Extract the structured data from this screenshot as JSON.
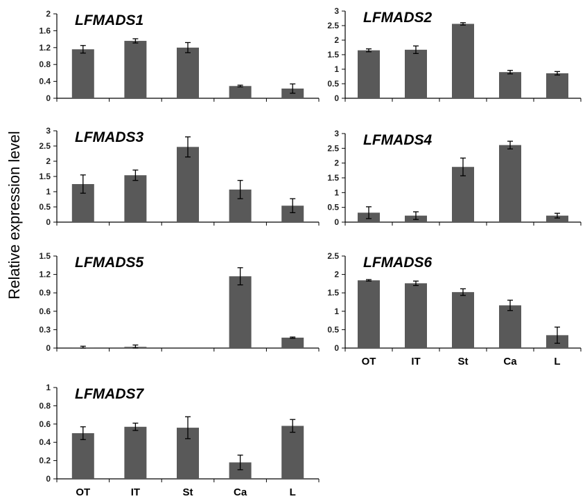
{
  "figure": {
    "ylabel": "Relative expression level"
  },
  "style": {
    "bar_color": "#595959",
    "axis_color": "#000000"
  },
  "chart_data": [
    {
      "type": "bar",
      "title": "LFMADS1",
      "categories": [
        "OT",
        "IT",
        "St",
        "Ca",
        "L"
      ],
      "values": [
        1.16,
        1.36,
        1.2,
        0.29,
        0.23
      ],
      "errors": [
        0.09,
        0.05,
        0.12,
        0.02,
        0.11
      ],
      "ylim": [
        0,
        2
      ],
      "yticks": [
        "0",
        "0.4",
        "0.8",
        "1.2",
        "1.6",
        "2"
      ],
      "show_xticks": false
    },
    {
      "type": "bar",
      "title": "LFMADS2",
      "categories": [
        "OT",
        "IT",
        "St",
        "Ca",
        "L"
      ],
      "values": [
        1.65,
        1.67,
        2.56,
        0.9,
        0.86
      ],
      "errors": [
        0.05,
        0.13,
        0.04,
        0.06,
        0.06
      ],
      "ylim": [
        0,
        3
      ],
      "yticks": [
        "0",
        "0.5",
        "1",
        "1.5",
        "2",
        "2.5",
        "3"
      ],
      "show_xticks": false
    },
    {
      "type": "bar",
      "title": "LFMADS3",
      "categories": [
        "OT",
        "IT",
        "St",
        "Ca",
        "L"
      ],
      "values": [
        1.25,
        1.54,
        2.47,
        1.07,
        0.54
      ],
      "errors": [
        0.3,
        0.17,
        0.33,
        0.3,
        0.23
      ],
      "ylim": [
        0,
        3
      ],
      "yticks": [
        "0",
        "0.5",
        "1",
        "1.5",
        "2",
        "2.5",
        "3"
      ],
      "show_xticks": false
    },
    {
      "type": "bar",
      "title": "LFMADS4",
      "categories": [
        "OT",
        "IT",
        "St",
        "Ca",
        "L"
      ],
      "values": [
        0.32,
        0.22,
        1.87,
        2.61,
        0.22
      ],
      "errors": [
        0.2,
        0.13,
        0.3,
        0.13,
        0.08
      ],
      "ylim": [
        0,
        3
      ],
      "yticks": [
        "0",
        "0.5",
        "1",
        "1.5",
        "2",
        "2.5",
        "3"
      ],
      "show_xticks": false
    },
    {
      "type": "bar",
      "title": "LFMADS5",
      "categories": [
        "OT",
        "IT",
        "St",
        "Ca",
        "L"
      ],
      "values": [
        0.01,
        0.02,
        0,
        1.17,
        0.17
      ],
      "errors": [
        0.02,
        0.03,
        0,
        0.14,
        0.01
      ],
      "ylim": [
        0,
        1.5
      ],
      "yticks": [
        "0",
        "0.3",
        "0.6",
        "0.9",
        "1.2",
        "1.5"
      ],
      "show_xticks": false
    },
    {
      "type": "bar",
      "title": "LFMADS6",
      "categories": [
        "OT",
        "IT",
        "St",
        "Ca",
        "L"
      ],
      "values": [
        1.84,
        1.76,
        1.52,
        1.16,
        0.35
      ],
      "errors": [
        0.02,
        0.06,
        0.09,
        0.14,
        0.22
      ],
      "ylim": [
        0,
        2.5
      ],
      "yticks": [
        "0",
        "0.5",
        "1",
        "1.5",
        "2",
        "2.5"
      ],
      "show_xticks": true
    },
    {
      "type": "bar",
      "title": "LFMADS7",
      "categories": [
        "OT",
        "IT",
        "St",
        "Ca",
        "L"
      ],
      "values": [
        0.5,
        0.57,
        0.56,
        0.18,
        0.58
      ],
      "errors": [
        0.07,
        0.04,
        0.12,
        0.08,
        0.07
      ],
      "ylim": [
        0,
        1
      ],
      "yticks": [
        "0",
        "0.2",
        "0.4",
        "0.6",
        "0.8",
        "1"
      ],
      "show_xticks": true
    }
  ]
}
